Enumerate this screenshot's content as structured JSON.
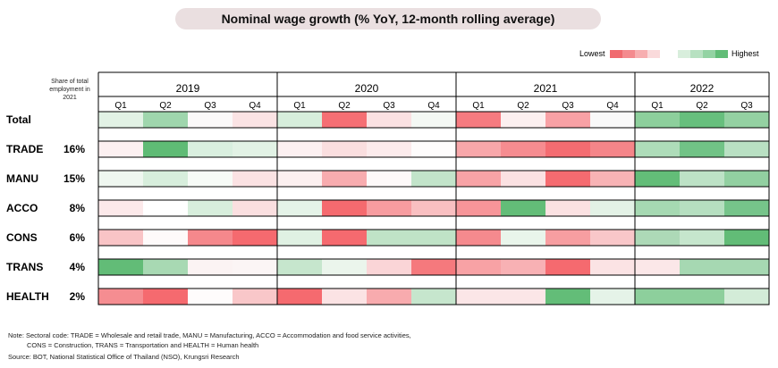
{
  "title": "Nominal wage growth (% YoY, 12-month rolling average)",
  "legend": {
    "low_label": "Lowest",
    "high_label": "Highest",
    "swatches": [
      "#f06a6f",
      "#f48a8e",
      "#f7aeb0",
      "#fadadb",
      "#d8eedc",
      "#b7e1c1",
      "#93d3a3",
      "#61bd77"
    ]
  },
  "share_note": "Share of total employment in 2021",
  "chart_data": {
    "type": "heatmap",
    "title": "Nominal wage growth (% YoY, 12-month rolling average)",
    "years": [
      {
        "label": "2019",
        "quarters": [
          "Q1",
          "Q2",
          "Q3",
          "Q4"
        ]
      },
      {
        "label": "2020",
        "quarters": [
          "Q1",
          "Q2",
          "Q3",
          "Q4"
        ]
      },
      {
        "label": "2021",
        "quarters": [
          "Q1",
          "Q2",
          "Q3",
          "Q4"
        ]
      },
      {
        "label": "2022",
        "quarters": [
          "Q1",
          "Q2",
          "Q3"
        ]
      }
    ],
    "rows": [
      {
        "name": "Total",
        "share": "",
        "cells": [
          "#e2f2e5",
          "#9fd6ad",
          "#fbf9f9",
          "#fbe3e4",
          "#d7eedc",
          "#f56f74",
          "#fbe1e2",
          "#f4f8f4",
          "#f67b80",
          "#fcf0f0",
          "#f8a1a5",
          "#f9f9f9",
          "#8dcf9c",
          "#67bf7d",
          "#94d1a2"
        ]
      },
      {
        "name": "TRADE",
        "share": "16%",
        "cells": [
          "#fcf0f1",
          "#5fbb75",
          "#d9efdf",
          "#e2f2e5",
          "#fcf0f1",
          "#fadedf",
          "#fcebec",
          "#fefcfc",
          "#f8a7aa",
          "#f68c90",
          "#f46c71",
          "#f58589",
          "#aedcb9",
          "#71c386",
          "#b9e0c3"
        ]
      },
      {
        "name": "MANU",
        "share": "15%",
        "cells": [
          "#eff7f0",
          "#d7eedc",
          "#f7fbf7",
          "#fbe2e3",
          "#fcf0f0",
          "#f8acaf",
          "#fdf9f9",
          "#c2e4ca",
          "#f8a3a6",
          "#fbe1e2",
          "#f56b70",
          "#f8b3b5",
          "#63bd78",
          "#bde2c6",
          "#92d0a1"
        ]
      },
      {
        "name": "ACCO",
        "share": "8%",
        "cells": [
          "#fce9ea",
          "#ffffff",
          "#d7eedc",
          "#fadfe0",
          "#e5f3e8",
          "#f56a6f",
          "#f79ca0",
          "#f9bfc1",
          "#f79599",
          "#63bd78",
          "#fbe1e2",
          "#e3f2e6",
          "#a6d9b2",
          "#b6dfc0",
          "#76c48a"
        ]
      },
      {
        "name": "CONS",
        "share": "6%",
        "cells": [
          "#f9c4c6",
          "#fefafa",
          "#f5888c",
          "#f56a6f",
          "#e0f1e3",
          "#f56a6f",
          "#c0e3c7",
          "#c0e3c7",
          "#f58a8e",
          "#e9f5eb",
          "#f79ea1",
          "#f9c7c9",
          "#add9b7",
          "#c6e6cd",
          "#62bc77"
        ]
      },
      {
        "name": "TRANS",
        "share": "4%",
        "cells": [
          "#62bc77",
          "#a8d9b3",
          "#fbf3f3",
          "#fbf5f5",
          "#c6e6cd",
          "#ebf5ec",
          "#fad5d7",
          "#f5797d",
          "#f8a2a5",
          "#f8b1b4",
          "#f56a6f",
          "#fbe3e4",
          "#fbe7e8",
          "#a6d8b2",
          "#a6d8b2"
        ]
      },
      {
        "name": "HEALTH",
        "share": "2%",
        "cells": [
          "#f58d91",
          "#f56a6f",
          "#fefcfc",
          "#f9c7c9",
          "#f56a6f",
          "#fbe3e4",
          "#f8abae",
          "#c6e6cd",
          "#fbe6e7",
          "#fbe6e7",
          "#63bd78",
          "#e5f3e8",
          "#8dcf9c",
          "#8dcf9c",
          "#d3ecd8"
        ]
      }
    ]
  },
  "note_line1": "Note: Sectoral code: TRADE = Wholesale and retail trade, MANU = Manufacturing, ACCO = Accommodation and food service activities,",
  "note_line2": "CONS = Construction, TRANS = Transportation and HEALTH = Human health",
  "source": "Source: BOT, National Statistical Office of Thailand (NSO), Krungsri Research"
}
